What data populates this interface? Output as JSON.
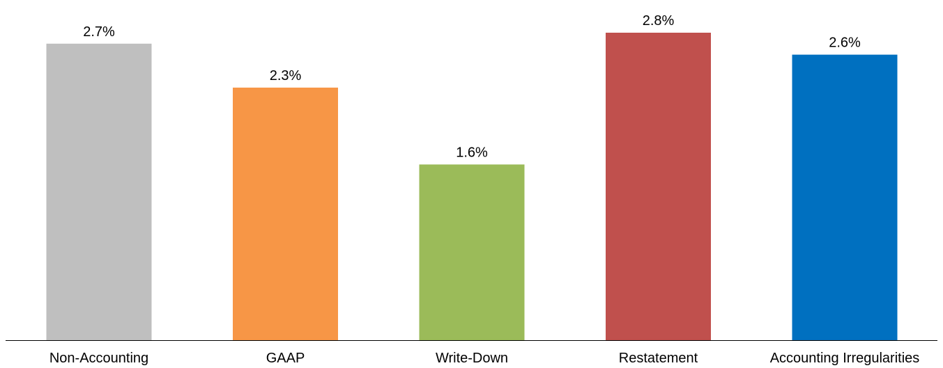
{
  "chart_data": {
    "type": "bar",
    "categories": [
      "Non-Accounting",
      "GAAP",
      "Write-Down",
      "Restatement",
      "Accounting Irregularities"
    ],
    "values": [
      2.7,
      2.3,
      1.6,
      2.8,
      2.6
    ],
    "data_labels": [
      "2.7%",
      "2.3%",
      "1.6%",
      "2.8%",
      "2.6%"
    ],
    "colors": [
      "#bfbfbf",
      "#f79646",
      "#9bbb59",
      "#c0504d",
      "#0070c0"
    ],
    "ylim": [
      0,
      2.8
    ],
    "grid": false,
    "legend": "none",
    "axis_color": "#000000"
  }
}
